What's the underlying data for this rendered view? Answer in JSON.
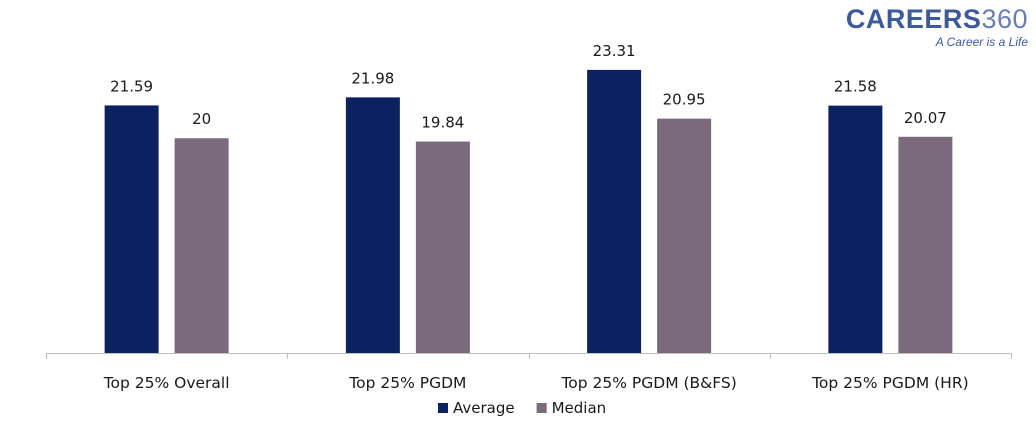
{
  "logo": {
    "brand": "CAREERS",
    "brand_num": "360",
    "tagline": "A Career is a Life"
  },
  "chart_data": {
    "type": "bar",
    "categories": [
      "Top 25% Overall",
      "Top 25% PGDM",
      "Top 25% PGDM (B&FS)",
      "Top 25% PGDM (HR)"
    ],
    "series": [
      {
        "name": "Average",
        "values": [
          21.59,
          21.98,
          23.31,
          21.58
        ],
        "color": "#0c2160"
      },
      {
        "name": "Median",
        "values": [
          20,
          19.84,
          20.95,
          20.07
        ],
        "color": "#7a6a7b"
      }
    ],
    "ylim": [
      9.6,
      25
    ],
    "grid": false,
    "legend_position": "bottom",
    "title": "",
    "xlabel": "",
    "ylabel": ""
  }
}
